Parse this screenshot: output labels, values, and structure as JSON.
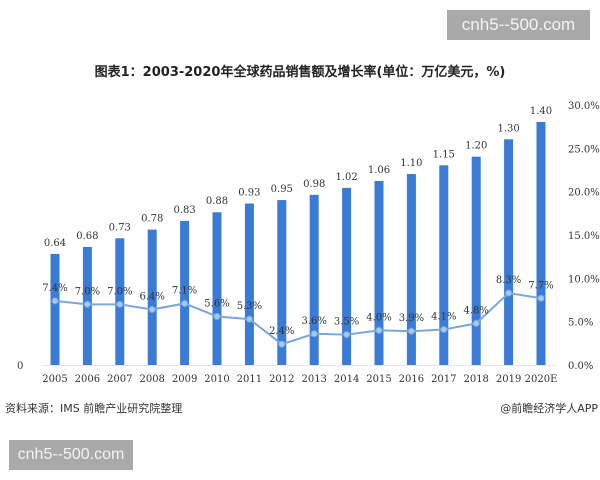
{
  "watermarks": {
    "top": "cnh5--500.com",
    "bottom": "cnh5--500.com"
  },
  "title": "图表1：2003-2020年全球药品销售额及增长率(单位：万亿美元，%)",
  "source": "资料来源：IMS 前瞻产业研究院整理",
  "credit": "@前瞻经济学人APP",
  "colors": {
    "bar": "#3a7bd5",
    "line": "#7aa7dc",
    "marker": "#a9c8ee"
  },
  "chart_data": {
    "type": "bar",
    "title": "图表1：2003-2020年全球药品销售额及增长率(单位：万亿美元，%)",
    "xlabel": "",
    "ylabel": "",
    "categories": [
      "2005",
      "2006",
      "2007",
      "2008",
      "2009",
      "2010",
      "2011",
      "2012",
      "2013",
      "2014",
      "2015",
      "2016",
      "2017",
      "2018",
      "2019",
      "2020E"
    ],
    "series": [
      {
        "name": "全球药品销售额(万亿美元)",
        "type": "bar",
        "axis": "left",
        "values": [
          0.64,
          0.68,
          0.73,
          0.78,
          0.83,
          0.88,
          0.93,
          0.95,
          0.98,
          1.02,
          1.06,
          1.1,
          1.15,
          1.2,
          1.3,
          1.4
        ],
        "labels": [
          "0.64",
          "0.68",
          "0.73",
          "0.78",
          "0.83",
          "0.88",
          "0.93",
          "0.95",
          "0.98",
          "1.02",
          "1.06",
          "1.10",
          "1.15",
          "1.20",
          "1.30",
          "1.40"
        ]
      },
      {
        "name": "增长率(%)",
        "type": "line",
        "axis": "right",
        "values": [
          7.4,
          7.0,
          7.0,
          6.4,
          7.1,
          5.6,
          5.3,
          2.4,
          3.6,
          3.5,
          4.0,
          3.9,
          4.1,
          4.8,
          8.3,
          7.7
        ],
        "labels": [
          "7.4%",
          "7.0%",
          "7.0%",
          "6.4%",
          "7.1%",
          "5.6%",
          "5.3%",
          "2.4%",
          "3.6%",
          "3.5%",
          "4.0%",
          "3.9%",
          "4.1%",
          "4.8%",
          "8.3%",
          "7.7%"
        ]
      }
    ],
    "left_axis": {
      "ticks": [
        "0"
      ],
      "ylim": [
        0,
        1.5
      ]
    },
    "right_axis": {
      "ticks": [
        "0.0%",
        "5.0%",
        "10.0%",
        "15.0%",
        "20.0%",
        "25.0%",
        "30.0%"
      ],
      "ylim": [
        0,
        30
      ]
    },
    "grid": false,
    "legend": "none"
  }
}
